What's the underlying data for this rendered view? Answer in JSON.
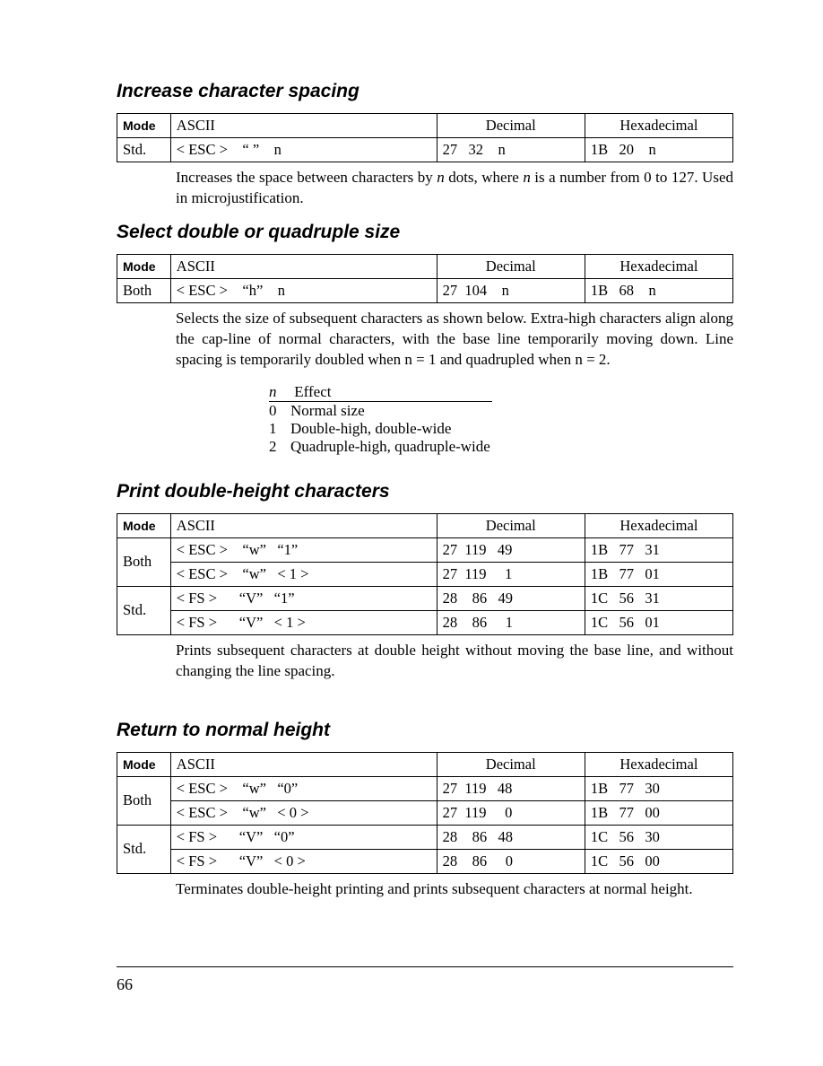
{
  "page_number": "66",
  "watermark_text": "",
  "sections": [
    {
      "title": "Increase character spacing",
      "headers": {
        "mode": "Mode",
        "ascii": "ASCII",
        "decimal": "Decimal",
        "hex": "Hexadecimal"
      },
      "rows": [
        {
          "mode": "Std.",
          "ascii": "< ESC >    “ ”    n",
          "decimal": "27   32    n",
          "hex": "1B   20    n"
        }
      ],
      "desc_before_n1": "Increases the space between characters by ",
      "desc_n1": "n",
      "desc_mid": " dots, where ",
      "desc_n2": "n",
      "desc_after": " is a number from 0 to 127. Used in microjustification."
    },
    {
      "title": "Select double or quadruple size",
      "headers": {
        "mode": "Mode",
        "ascii": "ASCII",
        "decimal": "Decimal",
        "hex": "Hexadecimal"
      },
      "rows": [
        {
          "mode": "Both",
          "ascii": "< ESC >    “h”    n",
          "decimal": "27  104    n",
          "hex": "1B   68    n"
        }
      ],
      "desc_full": "Selects the size of subsequent characters as shown below. Extra-high characters align along the cap-line of normal characters, with the base line temporarily moving down. Line spacing is temporarily doubled when n = 1 and quadrupled when n = 2.",
      "subtable": {
        "header_n": "n",
        "header_effect": "Effect",
        "rows": [
          {
            "n": "0",
            "effect": "Normal size"
          },
          {
            "n": "1",
            "effect": "Double-high, double-wide"
          },
          {
            "n": "2",
            "effect": "Quadruple-high, quadruple-wide"
          }
        ]
      }
    },
    {
      "title": "Print double-height characters",
      "headers": {
        "mode": "Mode",
        "ascii": "ASCII",
        "decimal": "Decimal",
        "hex": "Hexadecimal"
      },
      "group_rows": [
        {
          "mode": "Both",
          "rows": [
            {
              "ascii": "< ESC >    “w”   “1”",
              "decimal": "27  119   49",
              "hex": "1B   77   31"
            },
            {
              "ascii": "< ESC >    “w”   < 1 >",
              "decimal": "27  119     1",
              "hex": "1B   77   01"
            }
          ]
        },
        {
          "mode": "Std.",
          "rows": [
            {
              "ascii": "< FS >      “V”   “1”",
              "decimal": "28    86   49",
              "hex": "1C   56   31"
            },
            {
              "ascii": "< FS >      “V”   < 1 >",
              "decimal": "28    86     1",
              "hex": "1C   56   01"
            }
          ]
        }
      ],
      "desc": "Prints subsequent characters at double height without moving the base line, and without changing the line spacing."
    },
    {
      "title": "Return to normal height",
      "headers": {
        "mode": "Mode",
        "ascii": "ASCII",
        "decimal": "Decimal",
        "hex": "Hexadecimal"
      },
      "group_rows": [
        {
          "mode": "Both",
          "rows": [
            {
              "ascii": "< ESC >    “w”   “0”",
              "decimal": "27  119   48",
              "hex": "1B   77   30"
            },
            {
              "ascii": "< ESC >    “w”   < 0 >",
              "decimal": "27  119     0",
              "hex": "1B   77   00"
            }
          ]
        },
        {
          "mode": "Std.",
          "rows": [
            {
              "ascii": "< FS >      “V”   “0”",
              "decimal": "28    86   48",
              "hex": "1C   56   30"
            },
            {
              "ascii": "< FS >      “V”   < 0 >",
              "decimal": "28    86     0",
              "hex": "1C   56   00"
            }
          ]
        }
      ],
      "desc": "Terminates double-height printing and prints subsequent characters at normal height."
    }
  ]
}
